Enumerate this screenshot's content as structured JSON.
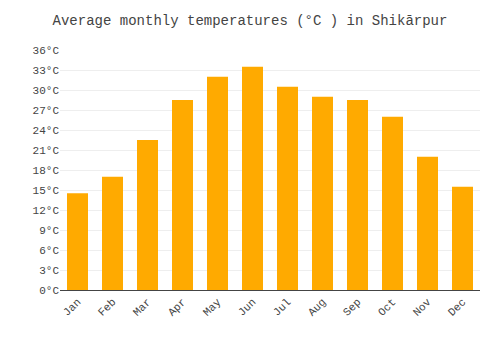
{
  "chart_data": {
    "type": "bar",
    "title": "Average monthly temperatures (°C ) in Shikārpur",
    "categories": [
      "Jan",
      "Feb",
      "Mar",
      "Apr",
      "May",
      "Jun",
      "Jul",
      "Aug",
      "Sep",
      "Oct",
      "Nov",
      "Dec"
    ],
    "values": [
      14.5,
      17.0,
      22.5,
      28.5,
      32.0,
      33.5,
      30.5,
      29.0,
      28.5,
      26.0,
      20.0,
      15.5
    ],
    "color": "#FFAA00",
    "ylim": [
      0,
      36
    ],
    "yticks": [
      {
        "value": 0,
        "label": "0°C"
      },
      {
        "value": 3,
        "label": "3°C"
      },
      {
        "value": 6,
        "label": "6°C"
      },
      {
        "value": 9,
        "label": "9°C"
      },
      {
        "value": 12,
        "label": "12°C"
      },
      {
        "value": 15,
        "label": "15°C"
      },
      {
        "value": 18,
        "label": "18°C"
      },
      {
        "value": 21,
        "label": "21°C"
      },
      {
        "value": 24,
        "label": "24°C"
      },
      {
        "value": 27,
        "label": "27°C"
      },
      {
        "value": 30,
        "label": "30°C"
      },
      {
        "value": 33,
        "label": "33°C"
      },
      {
        "value": 36,
        "label": "36°C"
      }
    ],
    "grid": true
  }
}
